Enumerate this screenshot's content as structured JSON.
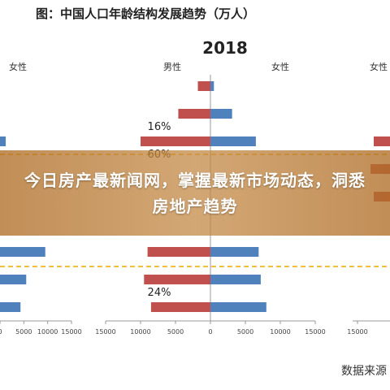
{
  "title": "图：中国人口年龄结构发展趋势（万人）",
  "source_label": "数据来源",
  "overlay_text": "今日房产最新闻网，掌握最新市场动态，洞悉房地产趋势",
  "chart_data": {
    "type": "bar",
    "center_panel": {
      "year_label": "2018",
      "legend_left": "男性",
      "legend_right": "女性",
      "colors": {
        "male": "#c0504d",
        "female": "#4f81bd"
      },
      "xlim": [
        -15000,
        15000
      ],
      "tick_labels": [
        "15000",
        "10000",
        "5000",
        "0",
        "5000",
        "10000",
        "15000"
      ],
      "tick_values": [
        -15000,
        -10000,
        -5000,
        0,
        5000,
        10000,
        15000
      ],
      "rows": [
        {
          "male": 1800,
          "female": 500
        },
        {
          "male": 4600,
          "female": 3100
        },
        {
          "male": 10000,
          "female": 6500
        },
        {
          "male": 10000,
          "female": 7000
        },
        {
          "male": 9300,
          "female": 10000
        },
        {
          "male": 9000,
          "female": 6900
        },
        {
          "male": 9500,
          "female": 7200
        },
        {
          "male": 8500,
          "female": 8000
        }
      ],
      "visible_rows": [
        0,
        1,
        2,
        5,
        6,
        7
      ],
      "annotations": [
        {
          "text": "16%",
          "row": 2
        },
        {
          "text": "60%",
          "row": 3
        },
        {
          "text": "24%",
          "row": 7
        }
      ]
    },
    "left_panel": {
      "legend": "女性",
      "tick_labels": [
        "0",
        "5000",
        "10000",
        "15000"
      ],
      "tick_values": [
        0,
        5000,
        10000,
        15000
      ],
      "rows": [
        {
          "value": 0
        },
        {
          "value": 0
        },
        {
          "value": 1200
        },
        {
          "value": 2800
        },
        {
          "value": 3200
        },
        {
          "value": 9500
        },
        {
          "value": 5500
        },
        {
          "value": 4300
        }
      ],
      "visible_rows": [
        2,
        5,
        6,
        7
      ]
    },
    "right_panel": {
      "legend": "女性",
      "tick_labels": [
        "15000"
      ],
      "tick_values": [
        15000
      ],
      "rows": [
        {
          "value": 0
        },
        {
          "value": 0
        },
        {
          "value": 1500
        },
        {
          "value": 1800
        },
        {
          "value": 1500
        }
      ],
      "visible_rows": [
        2,
        3,
        4
      ]
    }
  }
}
